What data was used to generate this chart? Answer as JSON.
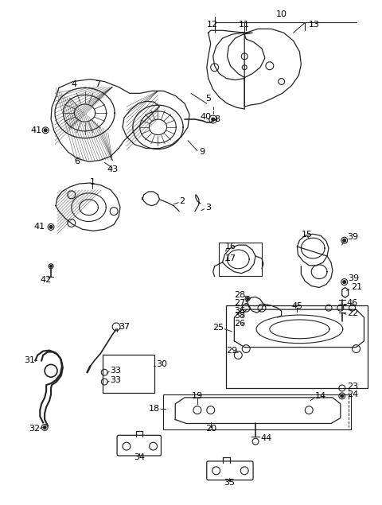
{
  "background_color": "#ffffff",
  "line_color": "#222222",
  "label_color": "#000000",
  "fig_width": 4.8,
  "fig_height": 6.35,
  "dpi": 100
}
